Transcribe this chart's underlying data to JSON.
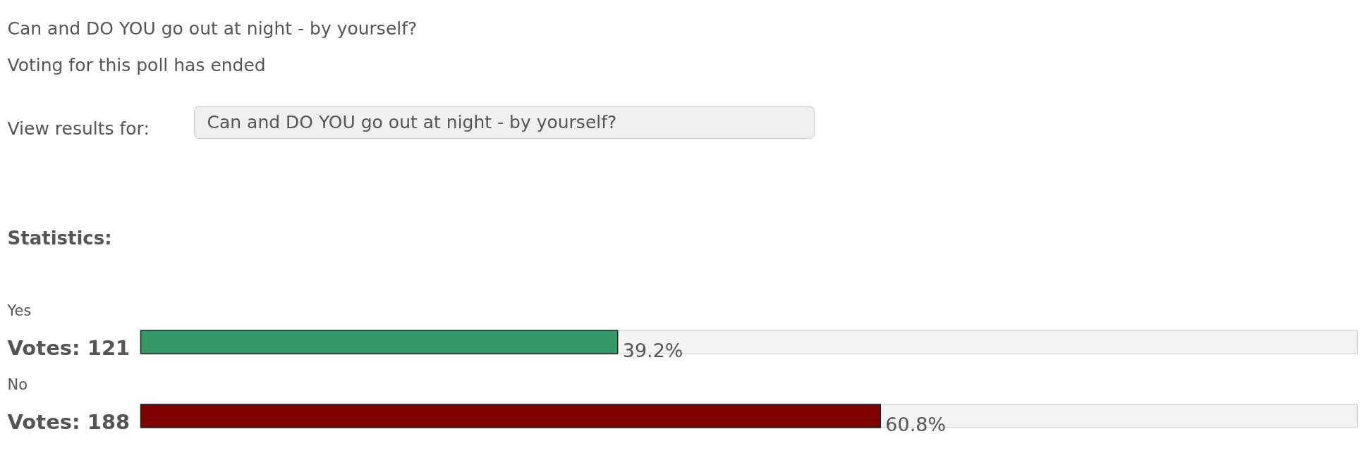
{
  "chart_data": {
    "type": "bar",
    "orientation": "horizontal",
    "title": "Can and DO YOU go out at night - by yourself?",
    "subtitle": "Voting for this poll has ended",
    "categories": [
      "Yes",
      "No"
    ],
    "values": [
      39.2,
      60.8
    ],
    "colors": [
      "#339966",
      "#800000"
    ],
    "value_labels": [
      "39.2%",
      "60.8%"
    ],
    "xlim": [
      0,
      100
    ],
    "tick_labels": false,
    "grid": false,
    "annotations": [
      "View results for:",
      "Can and DO YOU go out at night - by yourself?",
      "Statistics:",
      "Votes: 121",
      "Votes: 188"
    ]
  }
}
